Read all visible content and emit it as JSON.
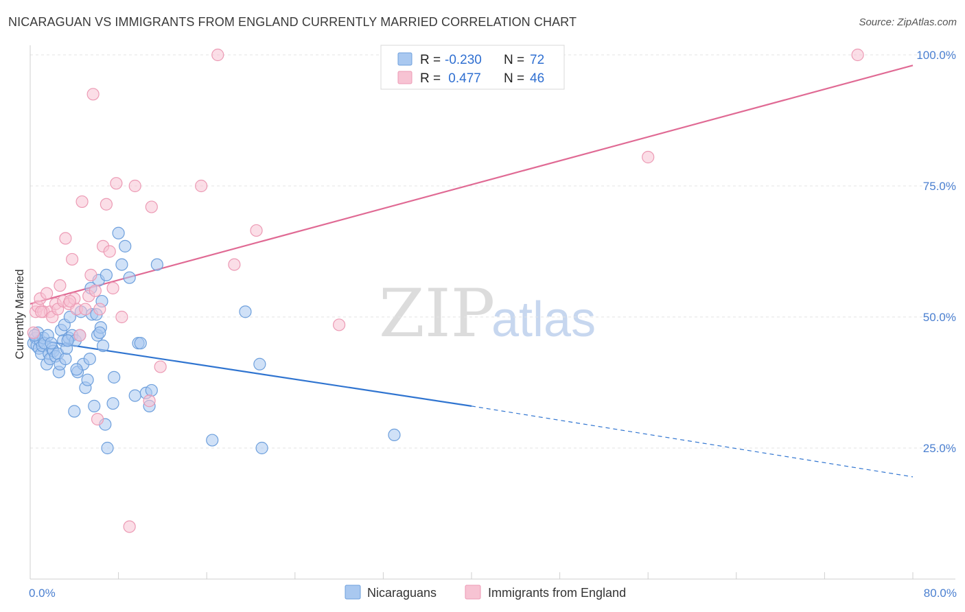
{
  "title": "NICARAGUAN VS IMMIGRANTS FROM ENGLAND CURRENTLY MARRIED CORRELATION CHART",
  "source": "Source: ZipAtlas.com",
  "watermark": {
    "part1": "ZIP",
    "part2": "atlas"
  },
  "legend": {
    "rows": [
      {
        "r_label": "R =",
        "r_value": "-0.230",
        "n_label": "N =",
        "n_value": "72",
        "color": "#5b9bd5"
      },
      {
        "r_label": "R =",
        "r_value": " 0.477",
        "n_label": "N =",
        "n_value": "46",
        "color": "#f08fb0"
      }
    ]
  },
  "bottom_legend": {
    "series1": "Nicaraguans",
    "series2": "Immigrants from England"
  },
  "colors": {
    "blue_fill": "#a9c8f0",
    "blue_stroke": "#6d9fdc",
    "blue_line": "#2f74d0",
    "pink_fill": "#f7c3d3",
    "pink_stroke": "#ec9ab4",
    "pink_line": "#e06a94",
    "grid": "#e3e3e3",
    "tick": "#4a7fd0"
  },
  "chart_data": {
    "type": "scatter",
    "title": "NICARAGUAN VS IMMIGRANTS FROM ENGLAND CURRENTLY MARRIED CORRELATION CHART",
    "xlabel": "",
    "ylabel": "Currently Married",
    "xlim": [
      0,
      80
    ],
    "ylim": [
      0,
      105
    ],
    "x_tick_labels": [
      {
        "value": 0,
        "label": "0.0%"
      },
      {
        "value": 80,
        "label": "80.0%"
      }
    ],
    "y_tick_labels": [
      {
        "value": 25,
        "label": "25.0%"
      },
      {
        "value": 50,
        "label": "50.0%"
      },
      {
        "value": 75,
        "label": "75.0%"
      },
      {
        "value": 100,
        "label": "100.0%"
      }
    ],
    "series": [
      {
        "name": "Nicaraguans",
        "R": -0.23,
        "N": 72,
        "trend": {
          "x0": 0,
          "y0": 45.8,
          "x1": 40,
          "y1": 33.0,
          "dash_x1": 80,
          "dash_y1": 19.5
        },
        "points": [
          [
            0.3,
            45
          ],
          [
            0.5,
            46
          ],
          [
            0.6,
            44.5
          ],
          [
            0.7,
            47
          ],
          [
            0.8,
            44
          ],
          [
            0.9,
            45.5
          ],
          [
            1.0,
            43
          ],
          [
            1.1,
            44.5
          ],
          [
            1.2,
            46
          ],
          [
            1.3,
            45
          ],
          [
            1.5,
            41
          ],
          [
            1.6,
            46.5
          ],
          [
            1.7,
            43
          ],
          [
            1.8,
            42
          ],
          [
            2.0,
            44
          ],
          [
            2.1,
            43.5
          ],
          [
            2.3,
            42.5
          ],
          [
            2.5,
            43
          ],
          [
            2.6,
            39.5
          ],
          [
            2.7,
            41
          ],
          [
            2.8,
            47.5
          ],
          [
            3.0,
            45.5
          ],
          [
            3.1,
            48.5
          ],
          [
            3.2,
            42
          ],
          [
            3.3,
            44
          ],
          [
            3.5,
            46
          ],
          [
            3.6,
            50
          ],
          [
            3.8,
            46.5
          ],
          [
            4.0,
            32
          ],
          [
            4.1,
            45.5
          ],
          [
            4.3,
            39.5
          ],
          [
            4.5,
            46.5
          ],
          [
            4.6,
            51
          ],
          [
            4.8,
            41
          ],
          [
            5.0,
            36.5
          ],
          [
            5.2,
            38
          ],
          [
            5.4,
            42
          ],
          [
            5.5,
            55.5
          ],
          [
            5.6,
            50.5
          ],
          [
            5.8,
            33
          ],
          [
            6.0,
            50.5
          ],
          [
            6.1,
            46.5
          ],
          [
            6.2,
            57
          ],
          [
            6.4,
            48
          ],
          [
            6.5,
            53
          ],
          [
            6.6,
            44.5
          ],
          [
            6.8,
            29.5
          ],
          [
            6.9,
            58
          ],
          [
            7.0,
            25
          ],
          [
            7.5,
            33.5
          ],
          [
            7.6,
            38.5
          ],
          [
            8.0,
            66
          ],
          [
            8.3,
            60
          ],
          [
            8.6,
            63.5
          ],
          [
            9.0,
            57.5
          ],
          [
            9.5,
            35
          ],
          [
            9.8,
            45
          ],
          [
            10.0,
            45
          ],
          [
            10.5,
            35.5
          ],
          [
            10.8,
            33
          ],
          [
            11.0,
            36
          ],
          [
            11.5,
            60
          ],
          [
            16.5,
            26.5
          ],
          [
            19.5,
            51
          ],
          [
            20.8,
            41
          ],
          [
            21.0,
            25
          ],
          [
            33.0,
            27.5
          ],
          [
            0.4,
            46.5
          ],
          [
            1.9,
            45
          ],
          [
            3.4,
            45.5
          ],
          [
            4.2,
            40
          ],
          [
            6.3,
            47
          ]
        ]
      },
      {
        "name": "Immigrants from England",
        "R": 0.477,
        "N": 46,
        "trend": {
          "x0": 0,
          "y0": 52.5,
          "x1": 80,
          "y1": 98.0
        },
        "points": [
          [
            0.5,
            51
          ],
          [
            0.7,
            52
          ],
          [
            0.9,
            53.5
          ],
          [
            1.2,
            51
          ],
          [
            1.5,
            54.5
          ],
          [
            1.8,
            51
          ],
          [
            2.0,
            50
          ],
          [
            2.3,
            52.5
          ],
          [
            2.5,
            51.5
          ],
          [
            2.7,
            56
          ],
          [
            3.0,
            53
          ],
          [
            3.2,
            65
          ],
          [
            3.5,
            52.5
          ],
          [
            3.8,
            61
          ],
          [
            4.0,
            53.5
          ],
          [
            4.2,
            51.5
          ],
          [
            4.5,
            46.5
          ],
          [
            4.7,
            72
          ],
          [
            5.0,
            51.5
          ],
          [
            5.3,
            54
          ],
          [
            5.5,
            58
          ],
          [
            5.7,
            92.5
          ],
          [
            5.9,
            55
          ],
          [
            6.1,
            30.5
          ],
          [
            6.3,
            51.5
          ],
          [
            6.6,
            63.5
          ],
          [
            6.9,
            71.5
          ],
          [
            7.2,
            62.5
          ],
          [
            7.5,
            55.5
          ],
          [
            7.8,
            75.5
          ],
          [
            8.3,
            50
          ],
          [
            9.0,
            10
          ],
          [
            9.5,
            75
          ],
          [
            10.8,
            34
          ],
          [
            11.0,
            71
          ],
          [
            11.8,
            40.5
          ],
          [
            15.5,
            75
          ],
          [
            17.0,
            100
          ],
          [
            18.5,
            60
          ],
          [
            20.5,
            66.5
          ],
          [
            28.0,
            48.5
          ],
          [
            56.0,
            80.5
          ],
          [
            75.0,
            100
          ],
          [
            0.3,
            47
          ],
          [
            1.0,
            51
          ],
          [
            3.6,
            53
          ]
        ]
      }
    ]
  }
}
